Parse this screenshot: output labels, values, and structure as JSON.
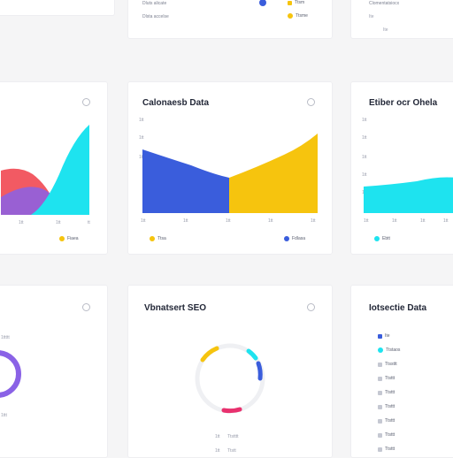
{
  "colors": {
    "blue": "#3a5ddc",
    "yellow": "#f6c40e",
    "cyan": "#1ee3ef",
    "red": "#f25a63",
    "purple": "#8a62e6",
    "pink": "#e8316e"
  },
  "top_partial": {
    "left_text_1": "Dluts alicate",
    "left_text_2": "Dlsta accelse",
    "legend_mid": "Ttsm",
    "legend_mid_2": "Ttsme",
    "right_text_1": "Clomentatsiocx",
    "right_text_2": "Ite",
    "right_text_3": "Ite"
  },
  "card_left_top": {
    "tick_left": "1tt",
    "tick_mid": "1tt",
    "tick_right": "tt",
    "legend": "Fiaea"
  },
  "card_mid_top": {
    "title": "Calonaesb Data",
    "ylabels": [
      "1tt",
      "1tt",
      "1tt"
    ],
    "xticks": [
      "1tt",
      "1tt",
      "1tt",
      "1tt",
      "1tt"
    ],
    "legend_left": "Ttsa",
    "legend_right": "Fdlasa"
  },
  "card_right_top": {
    "title": "Etiber ocr Ohela",
    "ylabels": [
      "1tt",
      "1tt",
      "1tt",
      "1tt",
      "1tt"
    ],
    "xticks": [
      "1tt",
      "1tt",
      "1tt",
      "1tt"
    ],
    "legend": "Ebtt"
  },
  "card_left_bottom": {
    "tick_1": "1ttttt",
    "tick_2": "1ttt"
  },
  "card_mid_bottom": {
    "title": "Vbnatsert SEO",
    "footer_1": "1tt",
    "footer_2": "Ttstttt",
    "footer_3": "1tt",
    "footer_4": "Ttstt"
  },
  "card_right_bottom": {
    "title": "Iotsectie Data",
    "items": [
      "Ite",
      "Ttstaos",
      "Ttssttt",
      "Ttsttt",
      "Ttsttt",
      "Ttsttt",
      "Ttsttt",
      "Ttsttt",
      "Ttsttt",
      "Ttsttt"
    ]
  },
  "chart_data": [
    {
      "type": "area",
      "series": [
        {
          "values": [
            0.1,
            0.22,
            0.06
          ]
        },
        {
          "values": [
            0.02,
            0.1,
            0.66
          ]
        },
        {
          "values": [
            0.18,
            0.38,
            0.1
          ]
        }
      ]
    },
    {
      "type": "area",
      "series": [
        {
          "values": [
            0.72,
            0.58,
            0.46,
            0.45
          ]
        },
        {
          "values": [
            0.45,
            0.6,
            0.78,
            0.92
          ]
        }
      ]
    },
    {
      "type": "area",
      "series": [
        {
          "values": [
            0.33,
            0.35,
            0.37,
            0.4,
            0.43
          ]
        }
      ]
    },
    {
      "type": "pie",
      "slices": [
        {
          "color": "yellow",
          "value": 0.1
        },
        {
          "color": "cyan",
          "value": 0.04
        },
        {
          "color": "blue",
          "value": 0.08
        },
        {
          "color": "pink",
          "value": 0.08
        }
      ]
    }
  ]
}
